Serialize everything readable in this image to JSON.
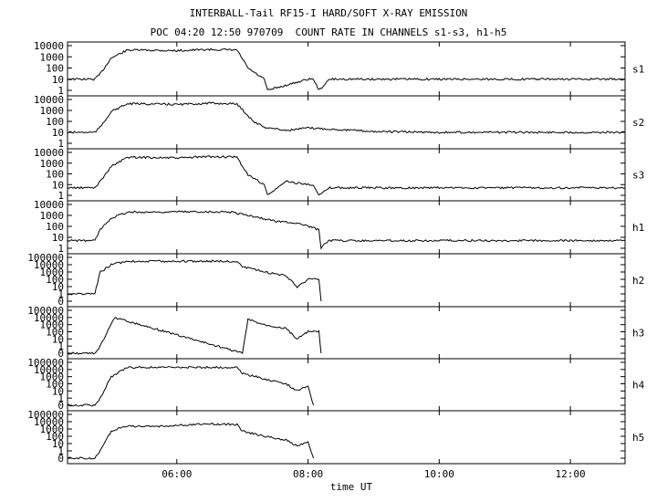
{
  "header": {
    "title": "INTERBALL-Tail RF15-I HARD/SOFT X-RAY EMISSION",
    "subtitle": "POC 04:20 12:50 970709  COUNT RATE IN CHANNELS s1-s3, h1-h5"
  },
  "chart_data": {
    "type": "line",
    "scale": "log",
    "xlabel": "time UT",
    "xlim": [
      "04:20",
      "12:50"
    ],
    "x_ticks": [
      "06:00",
      "08:00",
      "10:00",
      "12:00"
    ],
    "panels": [
      {
        "name": "s1",
        "y_ticks": [
          "10000",
          "1000",
          "100",
          "10",
          "1"
        ],
        "ylim": [
          1,
          10000
        ],
        "x": [
          "04:20",
          "04:45",
          "04:50",
          "05:00",
          "05:15",
          "05:30",
          "06:00",
          "06:30",
          "06:45",
          "06:55",
          "07:05",
          "07:15",
          "07:20",
          "07:23",
          "08:00",
          "08:05",
          "08:10",
          "08:20",
          "09:00",
          "10:00",
          "11:00",
          "12:00",
          "12:50"
        ],
        "values": [
          10,
          10,
          30,
          800,
          4000,
          4000,
          3500,
          4500,
          4200,
          4000,
          100,
          20,
          10,
          1,
          10,
          10,
          1,
          10,
          10,
          10,
          10,
          10,
          10
        ]
      },
      {
        "name": "s2",
        "y_ticks": [
          "10000",
          "1000",
          "100",
          "10",
          "1"
        ],
        "ylim": [
          1,
          10000
        ],
        "x": [
          "04:20",
          "04:45",
          "04:50",
          "05:00",
          "05:15",
          "05:30",
          "06:00",
          "06:30",
          "06:45",
          "06:55",
          "07:10",
          "07:20",
          "07:40",
          "08:00",
          "08:20",
          "09:00",
          "10:00",
          "11:00",
          "12:00",
          "12:50"
        ],
        "values": [
          10,
          10,
          30,
          800,
          4000,
          4000,
          3500,
          4500,
          4200,
          4000,
          100,
          30,
          15,
          25,
          20,
          12,
          10,
          10,
          10,
          10
        ]
      },
      {
        "name": "s3",
        "y_ticks": [
          "10000",
          "1000",
          "100",
          "10",
          "1"
        ],
        "ylim": [
          1,
          10000
        ],
        "x": [
          "04:20",
          "04:45",
          "04:50",
          "05:00",
          "05:15",
          "05:30",
          "06:00",
          "06:30",
          "06:45",
          "06:55",
          "07:05",
          "07:15",
          "07:20",
          "07:23",
          "07:40",
          "08:00",
          "08:05",
          "08:10",
          "08:20",
          "09:00",
          "10:00",
          "11:00",
          "12:00",
          "12:50"
        ],
        "values": [
          5,
          5,
          20,
          500,
          3500,
          3500,
          3000,
          4000,
          3800,
          3500,
          80,
          20,
          10,
          1,
          20,
          10,
          10,
          1,
          5,
          5,
          5,
          5,
          5,
          5
        ]
      },
      {
        "name": "h1",
        "y_ticks": [
          "10000",
          "1000",
          "100",
          "10",
          "1"
        ],
        "ylim": [
          1,
          10000
        ],
        "x": [
          "04:20",
          "04:45",
          "04:50",
          "05:00",
          "05:15",
          "05:30",
          "06:00",
          "06:30",
          "06:50",
          "07:10",
          "07:30",
          "07:50",
          "08:10",
          "08:12",
          "08:15",
          "08:20",
          "09:00",
          "10:00",
          "11:00",
          "12:00",
          "12:50"
        ],
        "values": [
          5,
          5,
          50,
          600,
          2000,
          2000,
          2100,
          2200,
          2000,
          800,
          300,
          200,
          50,
          1,
          3,
          5,
          5,
          5,
          5,
          5,
          5
        ]
      },
      {
        "name": "h2",
        "y_ticks": [
          "100000",
          "10000",
          "1000",
          "100",
          "10",
          "1",
          "0"
        ],
        "ylim": [
          0,
          100000
        ],
        "x": [
          "04:20",
          "04:40",
          "04:45",
          "04:50",
          "05:00",
          "05:15",
          "05:30",
          "06:00",
          "06:30",
          "06:55",
          "07:00",
          "07:20",
          "07:40",
          "07:50",
          "08:00",
          "08:10",
          "08:12"
        ],
        "values": [
          1,
          1,
          1,
          1000,
          10000,
          30000,
          30000,
          30000,
          30000,
          30000,
          5000,
          1000,
          300,
          10,
          100,
          100,
          0
        ]
      },
      {
        "name": "h3",
        "y_ticks": [
          "100000",
          "10000",
          "1000",
          "100",
          "10",
          "1",
          "0"
        ],
        "ylim": [
          0,
          100000
        ],
        "x": [
          "04:20",
          "04:45",
          "04:50",
          "05:00",
          "05:03",
          "07:00",
          "07:05",
          "07:20",
          "07:40",
          "07:50",
          "08:00",
          "08:10",
          "08:12"
        ],
        "values": [
          0,
          0,
          1,
          1000,
          10000,
          0,
          5000,
          1000,
          300,
          10,
          100,
          100,
          0
        ]
      },
      {
        "name": "h4",
        "y_ticks": [
          "100000",
          "10000",
          "1000",
          "100",
          "10",
          "1",
          "0"
        ],
        "ylim": [
          0,
          100000
        ],
        "x": [
          "04:20",
          "04:45",
          "04:50",
          "05:00",
          "05:15",
          "05:30",
          "06:00",
          "06:30",
          "06:55",
          "07:00",
          "07:20",
          "07:40",
          "07:50",
          "08:00",
          "08:05"
        ],
        "values": [
          0,
          0,
          1,
          1000,
          20000,
          20000,
          20000,
          20000,
          20000,
          3000,
          500,
          100,
          10,
          50,
          0
        ]
      },
      {
        "name": "h5",
        "y_ticks": [
          "100000",
          "10000",
          "1000",
          "100",
          "10",
          "1",
          "0"
        ],
        "ylim": [
          0,
          100000
        ],
        "x": [
          "04:20",
          "04:45",
          "04:50",
          "05:00",
          "05:15",
          "05:30",
          "06:00",
          "06:30",
          "06:55",
          "07:00",
          "07:20",
          "07:40",
          "07:50",
          "08:00",
          "08:05"
        ],
        "values": [
          0,
          0,
          1,
          500,
          3000,
          2000,
          3000,
          5000,
          4000,
          500,
          100,
          30,
          5,
          20,
          0
        ]
      }
    ],
    "grid": false,
    "legend": "none"
  }
}
